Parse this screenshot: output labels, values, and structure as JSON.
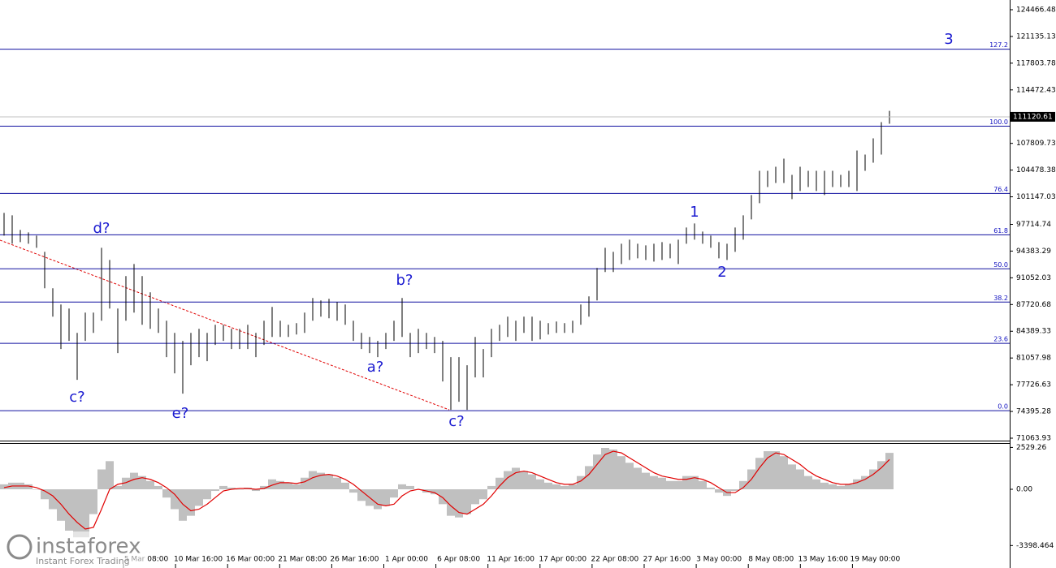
{
  "chart_data": {
    "type": "ohlc",
    "ylim": [
      70761,
      125678
    ],
    "yticks": [
      124466.48,
      121135.13,
      117803.78,
      114472.43,
      107809.73,
      104478.38,
      101147.03,
      97714.74,
      94383.29,
      91052.03,
      87720.68,
      84389.33,
      81057.98,
      77726.63,
      74395.28,
      71063.93
    ],
    "current_price": 111120.61,
    "levels": [
      {
        "value": 74496,
        "label": "0.0"
      },
      {
        "value": 82879,
        "label": "23.6"
      },
      {
        "value": 88030,
        "label": "38.2"
      },
      {
        "value": 92171,
        "label": "50.0"
      },
      {
        "value": 96413,
        "label": "61.8"
      },
      {
        "value": 101564,
        "label": "76.4"
      },
      {
        "value": 109947,
        "label": "100.0"
      },
      {
        "value": 119542,
        "label": "127.2"
      }
    ],
    "annotations": [
      "d?",
      "c?",
      "e?",
      "a?",
      "b?",
      "c?",
      "1",
      "2",
      "3"
    ],
    "x_labels": [
      "5 Mar 08:00",
      "10 Mar 16:00",
      "16 Mar 00:00",
      "21 Mar 08:00",
      "26 Mar 16:00",
      "1 Apr 00:00",
      "6 Apr 08:00",
      "11 Apr 16:00",
      "17 Apr 00:00",
      "22 Apr 08:00",
      "27 Apr 16:00",
      "3 May 00:00",
      "8 May 08:00",
      "13 May 16:00",
      "19 May 00:00"
    ],
    "high": [
      99140,
      98837,
      97019,
      96716,
      96312,
      94292,
      89747,
      87727,
      87222,
      84192,
      86717,
      86717,
      94797,
      93282,
      87222,
      91262,
      92777,
      91262,
      89242,
      87222,
      85707,
      84192,
      83182,
      84192,
      84697,
      84192,
      85202,
      85202,
      84697,
      84697,
      85202,
      84192,
      85707,
      87424,
      85707,
      85202,
      85404,
      86717,
      88535,
      88232,
      88434,
      88030,
      87727,
      85707,
      84192,
      83687,
      83182,
      84192,
      85707,
      88535,
      84192,
      84697,
      84192,
      83687,
      83182,
      81162,
      81162,
      80152,
      83687,
      82172,
      84697,
      85202,
      86212,
      85707,
      86212,
      86212,
      85707,
      85404,
      85606,
      85404,
      85707,
      87727,
      88737,
      92272,
      94797,
      94292,
      95302,
      95807,
      95302,
      95100,
      95302,
      95504,
      95302,
      95807,
      97322,
      97827,
      96817,
      96312,
      95504,
      95302,
      97322,
      98837,
      101362,
      104392,
      104392,
      104897,
      105907,
      103887,
      104897,
      104392,
      104392,
      104392,
      104392,
      103887,
      104392,
      106917,
      106412,
      108432,
      110452,
      111866
    ],
    "low": [
      96312,
      95302,
      95504,
      95302,
      94797,
      89747,
      86212,
      82172,
      83182,
      78334,
      83182,
      84192,
      85707,
      87222,
      81667,
      85707,
      86717,
      85202,
      84697,
      84192,
      81162,
      79142,
      76617,
      80152,
      81162,
      80657,
      82677,
      83182,
      82172,
      82172,
      82172,
      81162,
      82677,
      83687,
      83687,
      83687,
      83990,
      84192,
      85707,
      86212,
      86010,
      85707,
      85202,
      83182,
      82172,
      81667,
      81162,
      82172,
      83182,
      83687,
      81162,
      81667,
      82172,
      81667,
      78132,
      74597,
      75607,
      74597,
      78637,
      78637,
      81162,
      83182,
      83687,
      83182,
      84192,
      83182,
      83384,
      83990,
      84192,
      84192,
      84192,
      85202,
      86212,
      88232,
      91767,
      91767,
      92777,
      93282,
      93484,
      93282,
      93080,
      93282,
      93484,
      92777,
      95302,
      95807,
      95302,
      94797,
      93484,
      93282,
      94292,
      95807,
      98332,
      100352,
      102372,
      102877,
      102877,
      100857,
      101867,
      102372,
      101867,
      101362,
      102372,
      102372,
      102372,
      101867,
      104392,
      105402,
      106412,
      110250
    ],
    "macd": {
      "ylim": [
        -4755,
        2745
      ],
      "yticks": [
        2529.26,
        {
          "value": 0,
          "label": "0.00"
        },
        -3398.464
      ],
      "histogram": [
        300,
        400,
        400,
        300,
        0,
        -600,
        -1200,
        -1900,
        -2500,
        -2900,
        -2900,
        -1500,
        1200,
        1700,
        200,
        700,
        1000,
        800,
        500,
        200,
        -500,
        -1200,
        -1900,
        -1600,
        -1000,
        -600,
        -100,
        200,
        100,
        0,
        100,
        -100,
        200,
        600,
        500,
        400,
        300,
        700,
        1100,
        1000,
        900,
        700,
        400,
        -200,
        -700,
        -1000,
        -1200,
        -1000,
        -500,
        300,
        200,
        0,
        -200,
        -300,
        -900,
        -1600,
        -1700,
        -1500,
        -900,
        -600,
        200,
        700,
        1100,
        1300,
        1100,
        900,
        600,
        400,
        300,
        200,
        300,
        800,
        1400,
        2100,
        2500,
        2400,
        2000,
        1600,
        1300,
        1000,
        800,
        700,
        500,
        500,
        800,
        800,
        500,
        100,
        -200,
        -400,
        -100,
        500,
        1200,
        1900,
        2300,
        2300,
        2000,
        1500,
        1200,
        800,
        600,
        400,
        300,
        200,
        300,
        600,
        800,
        1200,
        1700,
        2200
      ],
      "histogram_color": "#c0c0c0",
      "signal": [
        100,
        200,
        200,
        200,
        100,
        -100,
        -400,
        -900,
        -1500,
        -2000,
        -2400,
        -2300,
        -1200,
        0,
        300,
        400,
        600,
        700,
        600,
        400,
        100,
        -300,
        -900,
        -1300,
        -1200,
        -900,
        -500,
        -100,
        0,
        50,
        50,
        0,
        50,
        250,
        400,
        400,
        350,
        450,
        700,
        850,
        900,
        800,
        600,
        300,
        -100,
        -500,
        -900,
        -1000,
        -900,
        -400,
        -100,
        0,
        -100,
        -200,
        -500,
        -1000,
        -1400,
        -1500,
        -1200,
        -900,
        -400,
        200,
        700,
        1000,
        1100,
        1000,
        800,
        600,
        400,
        300,
        300,
        500,
        900,
        1500,
        2100,
        2300,
        2200,
        1900,
        1600,
        1300,
        1000,
        800,
        700,
        600,
        600,
        700,
        600,
        400,
        100,
        -200,
        -200,
        100,
        600,
        1300,
        1900,
        2200,
        2100,
        1800,
        1500,
        1100,
        800,
        600,
        400,
        300,
        300,
        400,
        600,
        900,
        1300,
        1800
      ],
      "signal_color": "#e00000"
    }
  },
  "brand": {
    "name": "instaforex",
    "tagline": "Instant Forex Trading"
  }
}
